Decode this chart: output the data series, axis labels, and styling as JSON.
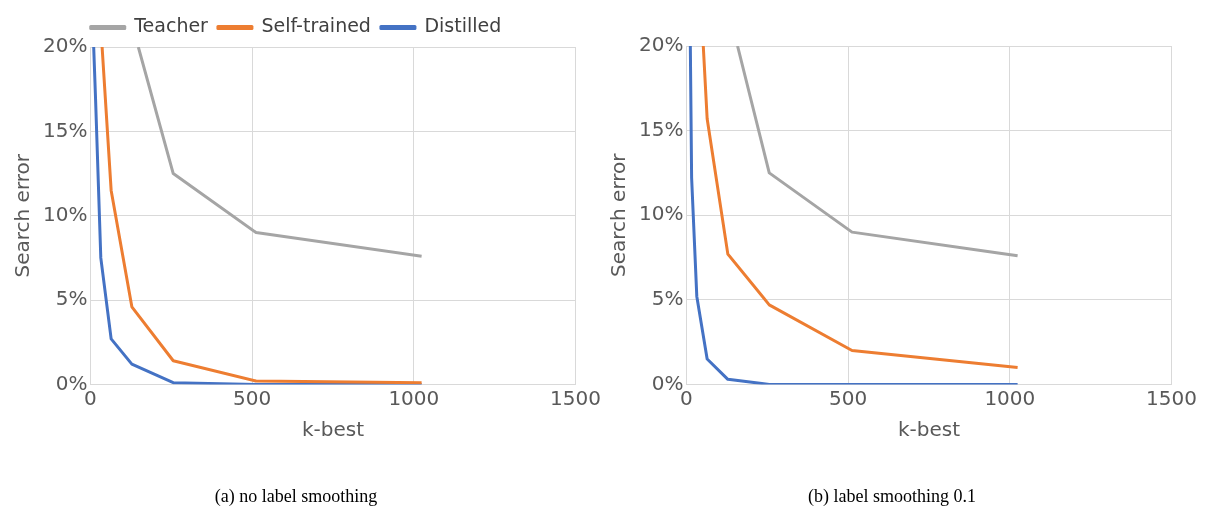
{
  "chart_data": [
    {
      "type": "line",
      "title": "(a) no label smoothing",
      "xlabel": "k-best",
      "ylabel": "Search error",
      "xlim": [
        0,
        1500
      ],
      "xticks": [
        0,
        500,
        1000,
        1500
      ],
      "ylim": [
        0,
        20
      ],
      "yticks": [
        {
          "value": 0,
          "label": "0%"
        },
        {
          "value": 5,
          "label": "5%"
        },
        {
          "value": 10,
          "label": "10%"
        },
        {
          "value": 15,
          "label": "15%"
        },
        {
          "value": 20,
          "label": "20%"
        }
      ],
      "grid": true,
      "legend": "top",
      "marker": "none",
      "series": [
        {
          "name": "Teacher",
          "color": "#a5a5a5",
          "x": [
            148,
            256,
            512,
            1024
          ],
          "values": [
            20,
            12.5,
            9.0,
            7.6
          ]
        },
        {
          "name": "Self-trained",
          "color": "#ed7d31",
          "x": [
            36,
            64,
            128,
            256,
            512,
            1024
          ],
          "values": [
            20,
            11.5,
            4.6,
            1.4,
            0.2,
            0.1
          ]
        },
        {
          "name": "Distilled",
          "color": "#4472c4",
          "x": [
            10,
            16,
            32,
            64,
            128,
            256,
            512,
            1024
          ],
          "values": [
            20,
            16.8,
            7.5,
            2.7,
            1.2,
            0.1,
            0,
            0
          ]
        }
      ]
    },
    {
      "type": "line",
      "title": "(b) label smoothing 0.1",
      "xlabel": "k-best",
      "ylabel": "Search error",
      "xlim": [
        0,
        1500
      ],
      "xticks": [
        0,
        500,
        1000,
        1500
      ],
      "ylim": [
        0,
        20
      ],
      "yticks": [
        {
          "value": 0,
          "label": "0%"
        },
        {
          "value": 5,
          "label": "5%"
        },
        {
          "value": 10,
          "label": "10%"
        },
        {
          "value": 15,
          "label": "15%"
        },
        {
          "value": 20,
          "label": "20%"
        }
      ],
      "grid": true,
      "marker": "none",
      "series": [
        {
          "color": "#a5a5a5",
          "x": [
            158,
            256,
            512,
            1024
          ],
          "values": [
            20,
            12.5,
            9.0,
            7.6
          ]
        },
        {
          "color": "#ed7d31",
          "x": [
            52,
            64,
            128,
            256,
            512,
            1024
          ],
          "values": [
            20,
            15.7,
            7.7,
            4.7,
            2.0,
            1.0
          ]
        },
        {
          "color": "#4472c4",
          "x": [
            12,
            16,
            32,
            64,
            128,
            256,
            512,
            1024
          ],
          "values": [
            20,
            12.2,
            5.2,
            1.5,
            0.3,
            0,
            0,
            0
          ]
        }
      ]
    }
  ]
}
